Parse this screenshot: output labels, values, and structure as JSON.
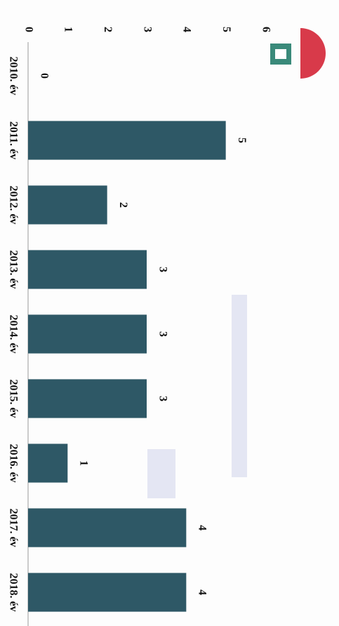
{
  "chart_data": {
    "type": "bar",
    "orientation": "horizontal",
    "categories": [
      "2010. év",
      "2011. év",
      "2012. év",
      "2013. év",
      "2014. év",
      "2015. év",
      "2016. év",
      "2017. év",
      "2018. év"
    ],
    "values": [
      0,
      5,
      2,
      3,
      3,
      3,
      1,
      4,
      4
    ],
    "color": "#2e5866",
    "ylim": [
      0,
      6
    ],
    "yticks": [
      0,
      1,
      2,
      3,
      4,
      5,
      6
    ],
    "grid": false
  }
}
